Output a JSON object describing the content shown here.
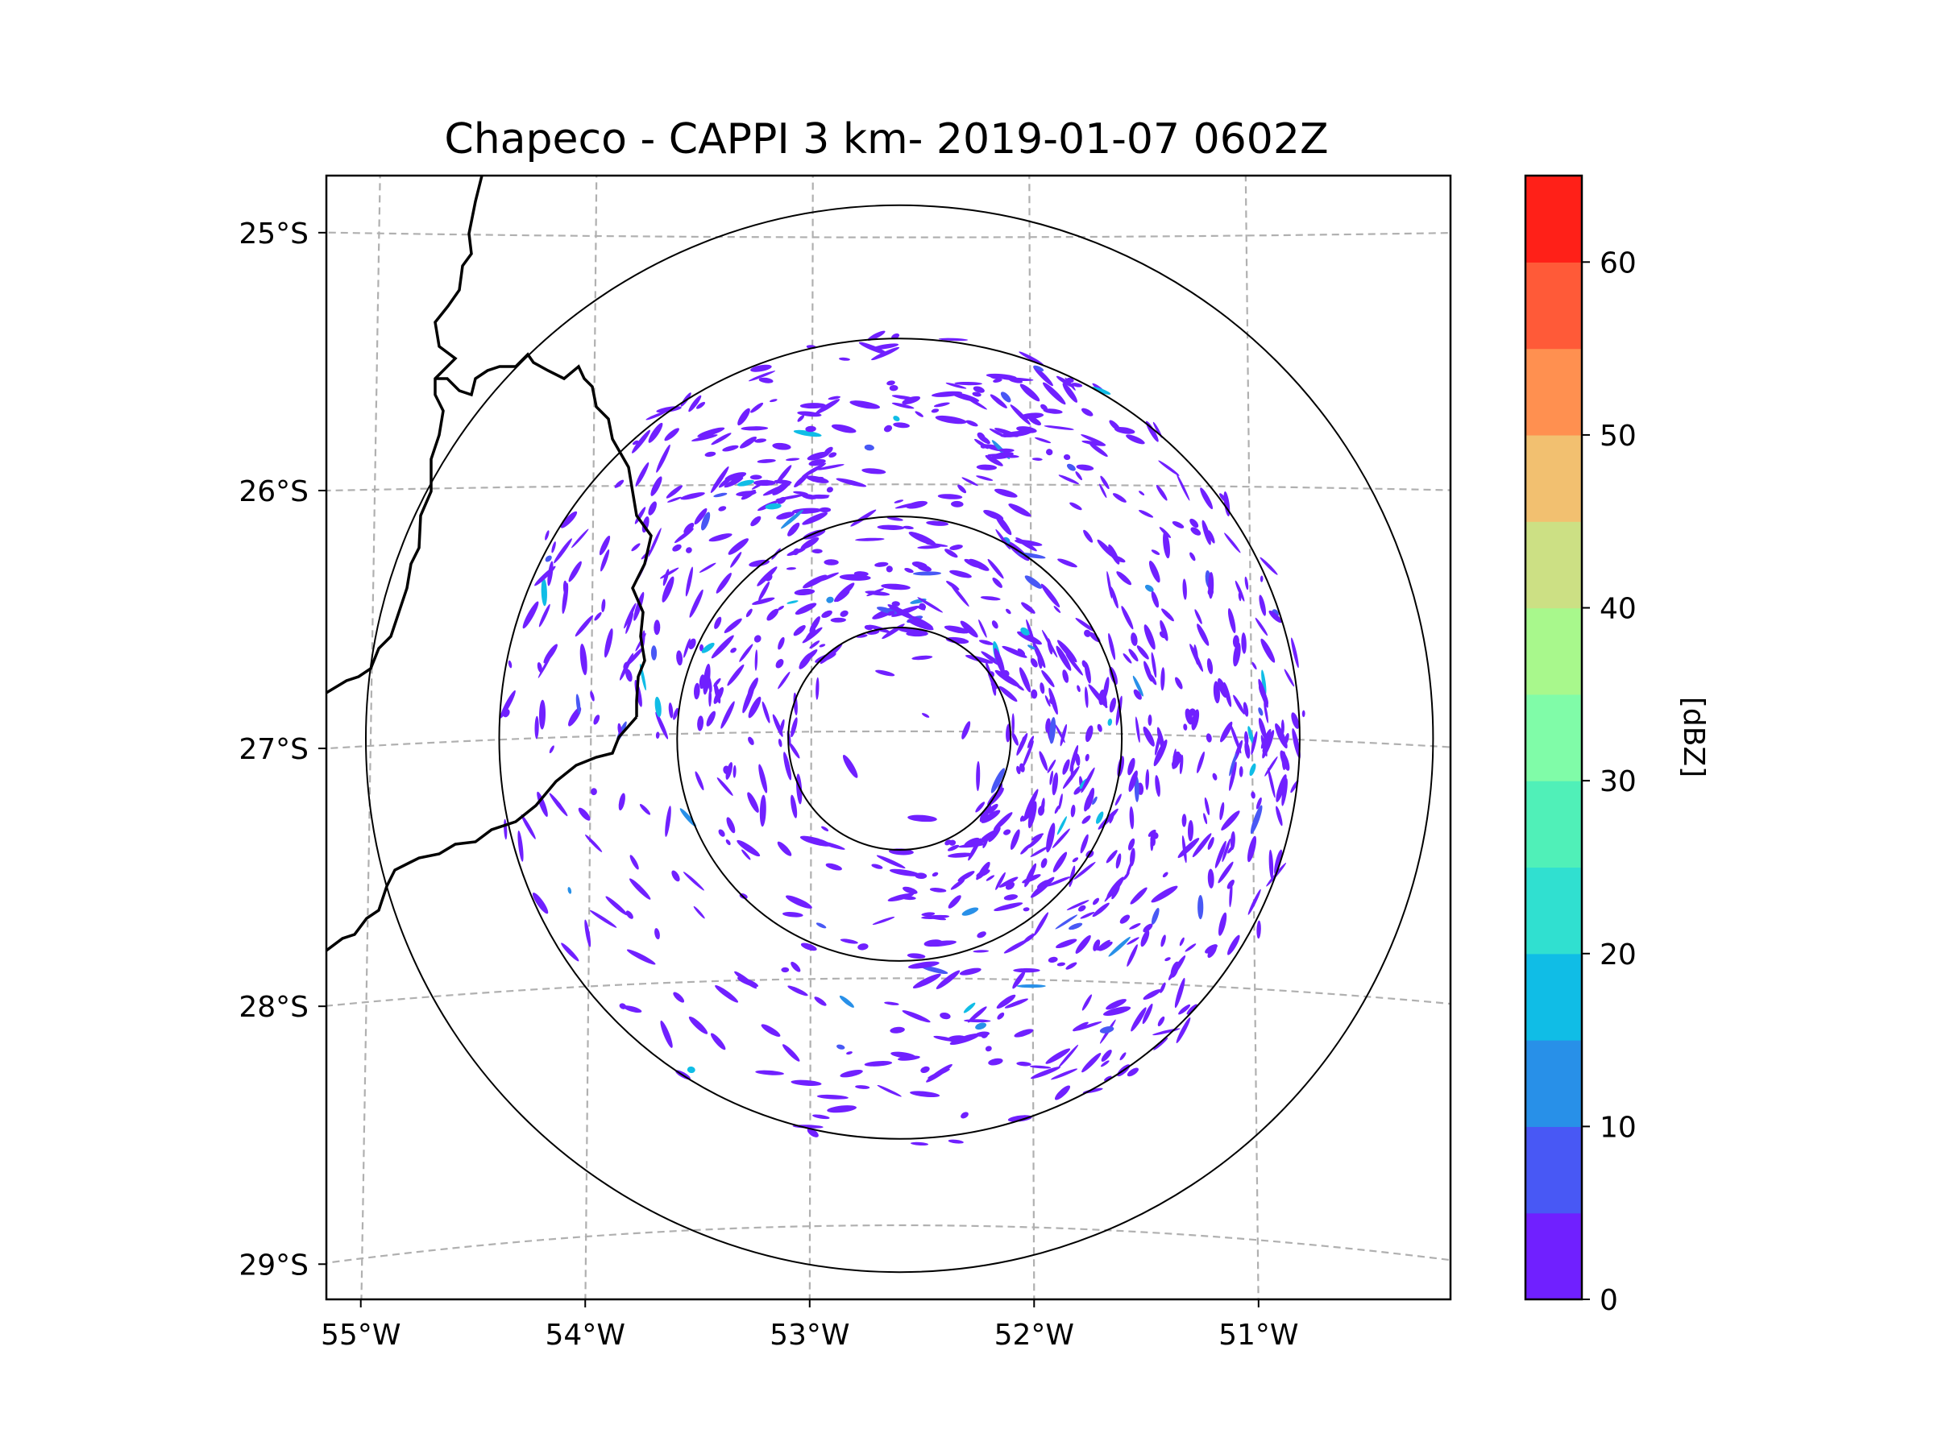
{
  "chart_data": {
    "type": "radar_map",
    "title": "Chapeco - CAPPI 3 km- 2019-01-07 0602Z",
    "radar_center": {
      "lon": -52.6,
      "lat": -27.03
    },
    "lon_range": [
      -55.2,
      -50.1
    ],
    "lat_range": [
      -29.3,
      -24.75
    ],
    "lon_ticks": [
      -55,
      -54,
      -53,
      -52,
      -51
    ],
    "lon_tick_labels": [
      "55°W",
      "54°W",
      "53°W",
      "52°W",
      "51°W"
    ],
    "lat_ticks": [
      -25,
      -26,
      -27,
      -28,
      -29
    ],
    "lat_tick_labels": [
      "25°S",
      "26°S",
      "27°S",
      "28°S",
      "29°S"
    ],
    "range_rings_deg_lat": [
      0.45,
      0.9,
      1.62,
      2.16
    ],
    "grid": true,
    "colorbar": {
      "label": "[dBZ]",
      "min": 0,
      "max": 65,
      "step": 5,
      "ticks": [
        0,
        10,
        20,
        30,
        40,
        50,
        60
      ],
      "tick_labels": [
        "0",
        "10",
        "20",
        "30",
        "40",
        "50",
        "60"
      ],
      "colors": [
        "#7020ff",
        "#4858f5",
        "#2890e8",
        "#10bde6",
        "#30e0d0",
        "#50f0b8",
        "#80fca8",
        "#a8f88c",
        "#cce084",
        "#f2c070",
        "#ff9050",
        "#ff5a38",
        "#ff2018"
      ]
    },
    "echo_summary": {
      "dominant_dbz_range": [
        0,
        5
      ],
      "max_dbz_approx": 20
    }
  }
}
